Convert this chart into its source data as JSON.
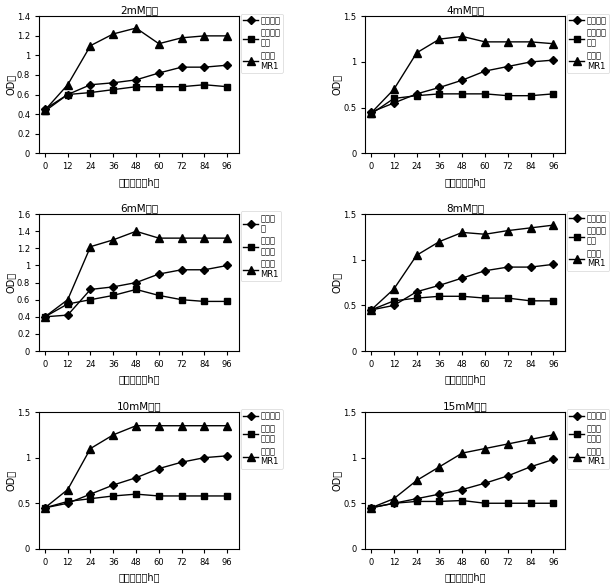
{
  "x_ticks": [
    0,
    12,
    24,
    36,
    48,
    60,
    72,
    84,
    96
  ],
  "panels": [
    {
      "title": "2mM甲醛",
      "ylim": [
        0,
        1.4
      ],
      "yticks": [
        0,
        0.2,
        0.4,
        0.6,
        0.8,
        1.0,
        1.2,
        1.4
      ],
      "yticklabels": [
        "0",
        "0.2",
        "0.4",
        "0.6",
        "0.8",
        "1",
        "1.2",
        "1.4"
      ],
      "series": [
        {
          "label": "假丝酵母",
          "marker": "D",
          "data": [
            0.45,
            0.6,
            0.7,
            0.72,
            0.75,
            0.82,
            0.88,
            0.88,
            0.9
          ]
        },
        {
          "label": "恶臭假单\n胞菌",
          "marker": "s",
          "data": [
            0.43,
            0.6,
            0.62,
            0.65,
            0.68,
            0.68,
            0.68,
            0.7,
            0.68
          ]
        },
        {
          "label": "甲基菌\nMR1",
          "marker": "^",
          "data": [
            0.44,
            0.7,
            1.1,
            1.22,
            1.28,
            1.12,
            1.18,
            1.2,
            1.2
          ]
        }
      ]
    },
    {
      "title": "4mM甲醛",
      "ylim": [
        0,
        1.5
      ],
      "yticks": [
        0,
        0.5,
        1.0,
        1.5
      ],
      "yticklabels": [
        "0",
        "0.5",
        "1",
        "1.5"
      ],
      "series": [
        {
          "label": "假丝酵母",
          "marker": "D",
          "data": [
            0.45,
            0.55,
            0.65,
            0.72,
            0.8,
            0.9,
            0.95,
            1.0,
            1.02
          ]
        },
        {
          "label": "恶臭假单\n胞菌",
          "marker": "s",
          "data": [
            0.43,
            0.6,
            0.63,
            0.65,
            0.65,
            0.65,
            0.63,
            0.63,
            0.65
          ]
        },
        {
          "label": "甲基菌\nMR1",
          "marker": "^",
          "data": [
            0.44,
            0.7,
            1.1,
            1.25,
            1.28,
            1.22,
            1.22,
            1.22,
            1.2
          ]
        }
      ]
    },
    {
      "title": "6mM甲醛",
      "ylim": [
        0,
        1.6
      ],
      "yticks": [
        0,
        0.2,
        0.4,
        0.6,
        0.8,
        1.0,
        1.2,
        1.4,
        1.6
      ],
      "yticklabels": [
        "0",
        "0.2",
        "0.4",
        "0.6",
        "0.8",
        "1",
        "1.2",
        "1.4",
        "1.6"
      ],
      "series": [
        {
          "label": "假丝酵\n母",
          "marker": "D",
          "data": [
            0.4,
            0.42,
            0.72,
            0.75,
            0.8,
            0.9,
            0.95,
            0.95,
            1.0
          ]
        },
        {
          "label": "恶臭假\n单胞菌",
          "marker": "s",
          "data": [
            0.4,
            0.55,
            0.6,
            0.65,
            0.72,
            0.65,
            0.6,
            0.58,
            0.58
          ]
        },
        {
          "label": "甲基菌\nMR1",
          "marker": "^",
          "data": [
            0.4,
            0.6,
            1.22,
            1.3,
            1.4,
            1.32,
            1.32,
            1.32,
            1.32
          ]
        }
      ]
    },
    {
      "title": "8mM甲醛",
      "ylim": [
        0,
        1.5
      ],
      "yticks": [
        0,
        0.5,
        1.0,
        1.5
      ],
      "yticklabels": [
        "0",
        "0.5",
        "1",
        "1.5"
      ],
      "series": [
        {
          "label": "假丝酵母",
          "marker": "D",
          "data": [
            0.45,
            0.5,
            0.65,
            0.72,
            0.8,
            0.88,
            0.92,
            0.92,
            0.95
          ]
        },
        {
          "label": "恶臭假单\n胞菌",
          "marker": "s",
          "data": [
            0.45,
            0.55,
            0.58,
            0.6,
            0.6,
            0.58,
            0.58,
            0.55,
            0.55
          ]
        },
        {
          "label": "甲基菌\nMR1",
          "marker": "^",
          "data": [
            0.45,
            0.68,
            1.05,
            1.2,
            1.3,
            1.28,
            1.32,
            1.35,
            1.38
          ]
        }
      ]
    },
    {
      "title": "10mM甲醛",
      "ylim": [
        0,
        1.5
      ],
      "yticks": [
        0,
        0.5,
        1.0,
        1.5
      ],
      "yticklabels": [
        "0",
        "0.5",
        "1",
        "1.5"
      ],
      "series": [
        {
          "label": "假丝酵母",
          "marker": "D",
          "data": [
            0.45,
            0.5,
            0.6,
            0.7,
            0.78,
            0.88,
            0.95,
            1.0,
            1.02
          ]
        },
        {
          "label": "恶臭假\n单胞菌",
          "marker": "s",
          "data": [
            0.45,
            0.52,
            0.55,
            0.58,
            0.6,
            0.58,
            0.58,
            0.58,
            0.58
          ]
        },
        {
          "label": "甲基菌\nMR1",
          "marker": "^",
          "data": [
            0.45,
            0.65,
            1.1,
            1.25,
            1.35,
            1.35,
            1.35,
            1.35,
            1.35
          ]
        }
      ]
    },
    {
      "title": "15mM甲醛",
      "ylim": [
        0,
        1.5
      ],
      "yticks": [
        0,
        0.5,
        1.0,
        1.5
      ],
      "yticklabels": [
        "0",
        "0.5",
        "1",
        "1.5"
      ],
      "series": [
        {
          "label": "假丝酵母",
          "marker": "D",
          "data": [
            0.45,
            0.5,
            0.55,
            0.6,
            0.65,
            0.72,
            0.8,
            0.9,
            0.98
          ]
        },
        {
          "label": "恶臭假\n单胞菌",
          "marker": "s",
          "data": [
            0.45,
            0.5,
            0.52,
            0.52,
            0.53,
            0.5,
            0.5,
            0.5,
            0.5
          ]
        },
        {
          "label": "甲基菌\nMR1",
          "marker": "^",
          "data": [
            0.45,
            0.55,
            0.75,
            0.9,
            1.05,
            1.1,
            1.15,
            1.2,
            1.25
          ]
        }
      ]
    }
  ],
  "xlabel": "处理时间（h）",
  "ylabel": "OD值"
}
